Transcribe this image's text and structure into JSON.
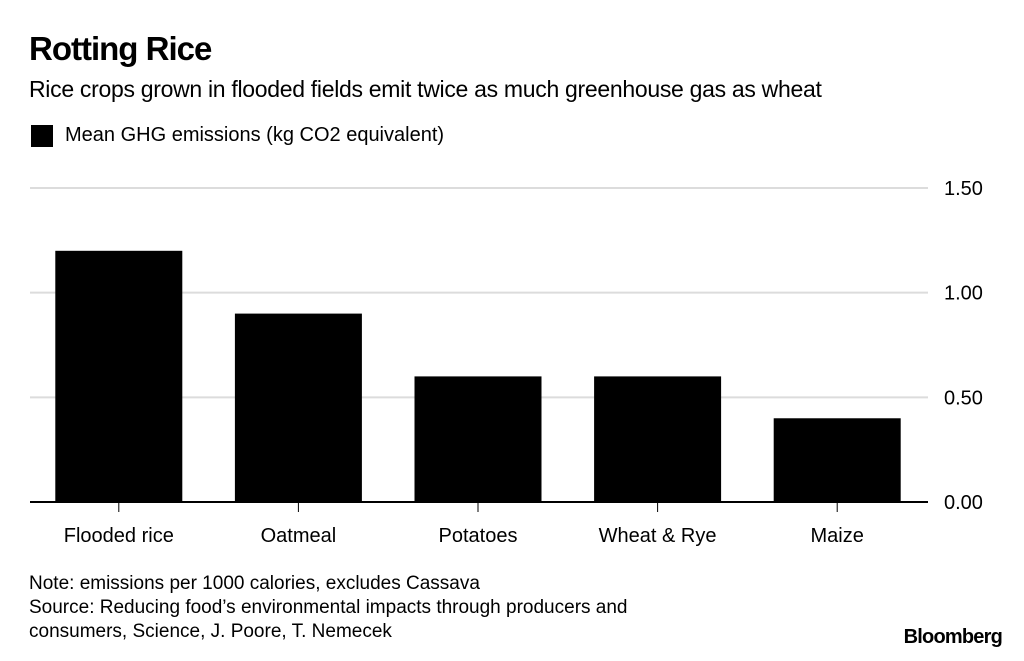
{
  "chart_data": {
    "type": "bar",
    "title": "Rotting Rice",
    "subtitle": "Rice crops grown in flooded fields emit twice as much greenhouse gas as wheat",
    "legend": [
      {
        "name": "Mean GHG emissions (kg CO2 equivalent)",
        "color": "#000000"
      }
    ],
    "legend_position": "top-left",
    "categories": [
      "Flooded rice",
      "Oatmeal",
      "Potatoes",
      "Wheat & Rye",
      "Maize"
    ],
    "series": [
      {
        "name": "Mean GHG emissions (kg CO2 equivalent)",
        "values": [
          1.2,
          0.9,
          0.6,
          0.6,
          0.4
        ]
      }
    ],
    "xlabel": "",
    "ylabel": "",
    "ylim": [
      0,
      1.5
    ],
    "yticks": [
      "0.00",
      "0.50",
      "1.00",
      "1.50"
    ],
    "ytick_values": [
      0,
      0.5,
      1.0,
      1.5
    ],
    "y_axis_side": "right",
    "grid": true,
    "note": "Note: emissions per 1000 calories, excludes Cassava",
    "source": "Source: Reducing food’s environmental impacts through producers and consumers, Science, J. Poore, T. Nemecek",
    "source_line1": "Source: Reducing food’s environmental impacts through producers and",
    "source_line2": "consumers, Science, J. Poore, T. Nemecek",
    "brand": "Bloomberg"
  }
}
